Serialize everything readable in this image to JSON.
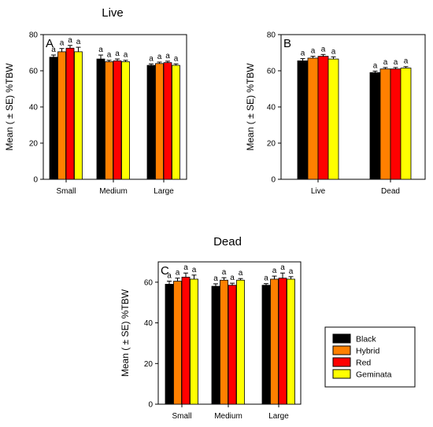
{
  "figure": {
    "titles": {
      "live": "Live",
      "dead": "Dead"
    }
  },
  "legend": {
    "items": [
      {
        "label": "Black",
        "color": "#000000"
      },
      {
        "label": "Hybrid",
        "color": "#ff8000"
      },
      {
        "label": "Red",
        "color": "#ff0000"
      },
      {
        "label": "Geminata",
        "color": "#ffff00"
      }
    ]
  },
  "chart_data": [
    {
      "id": "A",
      "type": "bar",
      "panel_label": "A",
      "title": "Live",
      "ylabel": "Mean ( ± SE) %TBW",
      "ylim": [
        0,
        80
      ],
      "yticks": [
        0,
        20,
        40,
        60,
        80
      ],
      "categories": [
        "Small",
        "Medium",
        "Large"
      ],
      "series": [
        {
          "name": "Black",
          "values": [
            67.5,
            66.5,
            63.0
          ],
          "errors": [
            1.2,
            2.2,
            0.8
          ]
        },
        {
          "name": "Hybrid",
          "values": [
            70.5,
            65.0,
            64.0
          ],
          "errors": [
            1.8,
            0.8,
            0.8
          ]
        },
        {
          "name": "Red",
          "values": [
            72.5,
            65.5,
            64.5
          ],
          "errors": [
            1.5,
            1.0,
            0.8
          ]
        },
        {
          "name": "Geminata",
          "values": [
            70.5,
            65.0,
            63.0
          ],
          "errors": [
            2.5,
            0.8,
            0.8
          ]
        }
      ],
      "annotations": "a"
    },
    {
      "id": "B",
      "type": "bar",
      "panel_label": "B",
      "title": "",
      "ylabel": "Mean ( ± SE) %TBW",
      "ylim": [
        0,
        80
      ],
      "yticks": [
        0,
        20,
        40,
        60,
        80
      ],
      "categories": [
        "Live",
        "Dead"
      ],
      "series": [
        {
          "name": "Black",
          "values": [
            65.5,
            59.0
          ],
          "errors": [
            1.2,
            0.8
          ]
        },
        {
          "name": "Hybrid",
          "values": [
            67.0,
            61.0
          ],
          "errors": [
            1.0,
            0.8
          ]
        },
        {
          "name": "Red",
          "values": [
            68.0,
            61.0
          ],
          "errors": [
            1.0,
            0.8
          ]
        },
        {
          "name": "Geminata",
          "values": [
            66.5,
            61.5
          ],
          "errors": [
            1.2,
            0.8
          ]
        }
      ],
      "annotations": "a"
    },
    {
      "id": "C",
      "type": "bar",
      "panel_label": "C",
      "title": "Dead",
      "ylabel": "Mean ( ± SE) %TBW",
      "ylim": [
        0,
        70
      ],
      "yticks": [
        0,
        20,
        40,
        60
      ],
      "categories": [
        "Small",
        "Medium",
        "Large"
      ],
      "series": [
        {
          "name": "Black",
          "values": [
            59.0,
            58.0,
            58.5
          ],
          "errors": [
            1.5,
            1.2,
            0.8
          ]
        },
        {
          "name": "Hybrid",
          "values": [
            60.5,
            61.0,
            61.5
          ],
          "errors": [
            1.5,
            1.2,
            1.5
          ]
        },
        {
          "name": "Red",
          "values": [
            62.5,
            58.5,
            62.0
          ],
          "errors": [
            2.0,
            1.0,
            2.5
          ]
        },
        {
          "name": "Geminata",
          "values": [
            61.5,
            61.0,
            61.5
          ],
          "errors": [
            2.0,
            0.8,
            1.2
          ]
        }
      ],
      "annotations": "a"
    }
  ]
}
